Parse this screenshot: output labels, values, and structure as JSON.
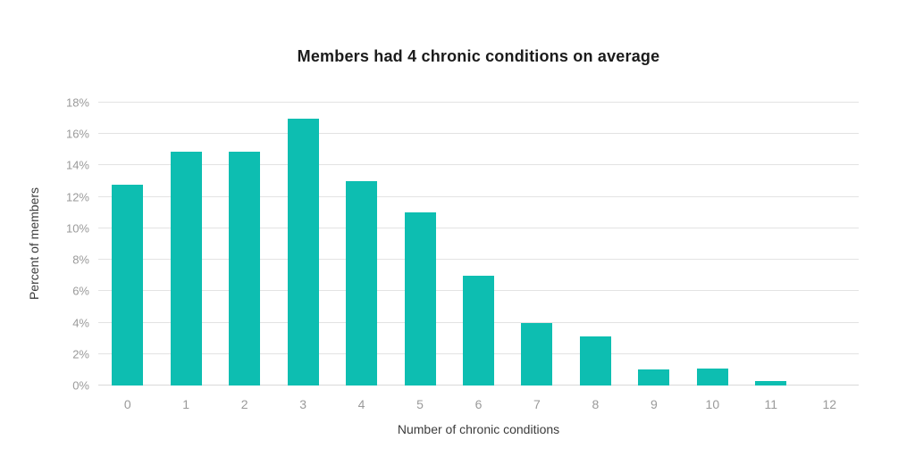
{
  "chart_data": {
    "type": "bar",
    "title": "Members had 4 chronic conditions on average",
    "xlabel": "Number of chronic conditions",
    "ylabel": "Percent of members",
    "categories": [
      "0",
      "1",
      "2",
      "3",
      "4",
      "5",
      "6",
      "7",
      "8",
      "9",
      "10",
      "11",
      "12"
    ],
    "values": [
      12.8,
      14.9,
      14.9,
      17,
      13,
      11,
      7,
      4,
      3.1,
      1,
      1.1,
      0.3,
      0
    ],
    "y_ticks": [
      "0%",
      "2%",
      "4%",
      "6%",
      "8%",
      "10%",
      "12%",
      "14%",
      "16%",
      "18%"
    ],
    "y_tick_values": [
      0,
      2,
      4,
      6,
      8,
      10,
      12,
      14,
      16,
      18
    ],
    "ylim": [
      0,
      18
    ],
    "grid": true,
    "legend": "none",
    "bar_color": "#0dbeb1",
    "colors": {
      "title": "#1b1b1b",
      "axis_title": "#3c3c3c",
      "tick_label": "#9a9a9a",
      "gridline": "#e3e3e3",
      "baseline": "#d9d9d9",
      "background": "#ffffff"
    }
  }
}
